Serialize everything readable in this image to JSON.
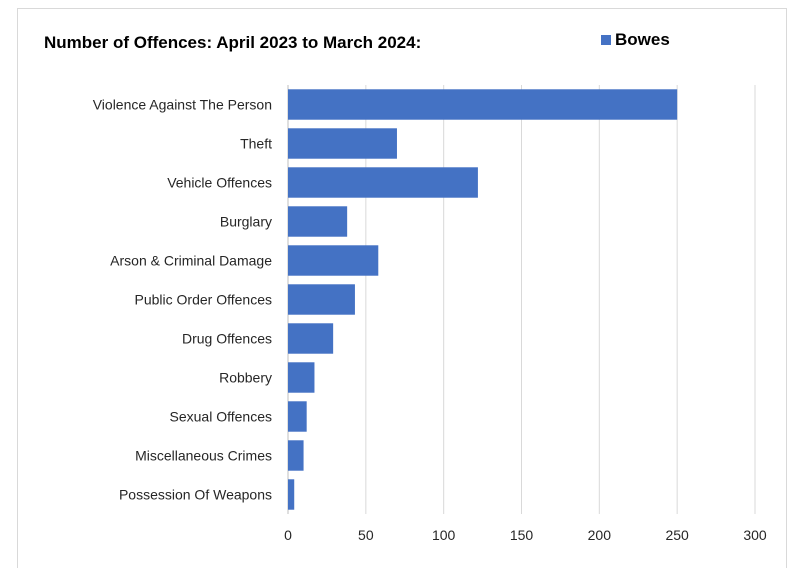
{
  "chart_data": {
    "type": "bar",
    "orientation": "horizontal",
    "title": "Number of Offences: April 2023 to March 2024:",
    "categories": [
      "Violence Against The Person",
      "Theft",
      "Vehicle Offences",
      "Burglary",
      "Arson & Criminal Damage",
      "Public Order Offences",
      "Drug Offences",
      "Robbery",
      "Sexual Offences",
      "Miscellaneous Crimes",
      "Possession Of Weapons"
    ],
    "series": [
      {
        "name": "Bowes",
        "color": "#4472c4",
        "values": [
          250,
          70,
          122,
          38,
          58,
          43,
          29,
          17,
          12,
          10,
          4
        ]
      }
    ],
    "xlim": [
      0,
      300
    ],
    "xticks": [
      0,
      50,
      100,
      150,
      200,
      250,
      300
    ],
    "grid": "vertical",
    "legend_position": "top-right"
  }
}
